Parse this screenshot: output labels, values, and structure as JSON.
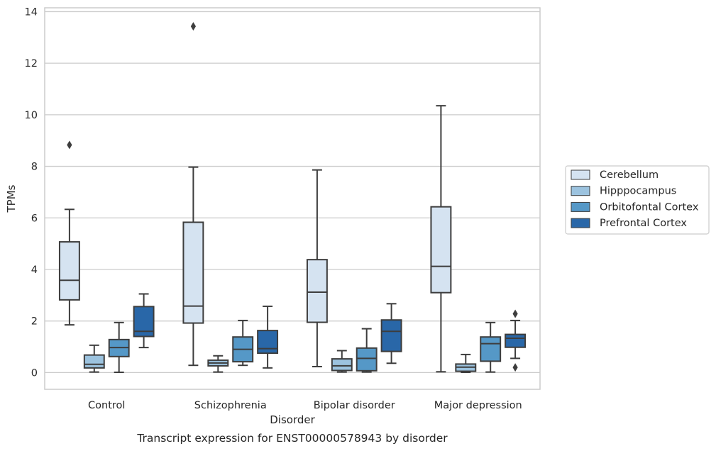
{
  "chart_data": {
    "type": "boxplot",
    "caption": "Transcript expression for ENST00000578943 by disorder",
    "xlabel": "Disorder",
    "ylabel": "TPMs",
    "ylim": [
      -0.65,
      14.15
    ],
    "yticks": [
      0,
      2,
      4,
      6,
      8,
      10,
      12,
      14
    ],
    "categories": [
      "Control",
      "Schizophrenia",
      "Bipolar disorder",
      "Major depression"
    ],
    "grid": "horizontal",
    "legend_position": "right",
    "series": [
      {
        "name": "Cerebellum",
        "color": "#d5e3f1",
        "boxes": [
          {
            "whisker_low": 1.85,
            "q1": 2.82,
            "median": 3.58,
            "q3": 5.07,
            "whisker_high": 6.33,
            "outliers": [
              8.83
            ]
          },
          {
            "whisker_low": 0.28,
            "q1": 1.92,
            "median": 2.58,
            "q3": 5.83,
            "whisker_high": 7.97,
            "outliers": [
              13.43
            ]
          },
          {
            "whisker_low": 0.23,
            "q1": 1.95,
            "median": 3.12,
            "q3": 4.38,
            "whisker_high": 7.86,
            "outliers": []
          },
          {
            "whisker_low": 0.03,
            "q1": 3.1,
            "median": 4.12,
            "q3": 6.43,
            "whisker_high": 10.35,
            "outliers": []
          }
        ]
      },
      {
        "name": "Hipppocampus",
        "color": "#9cc3df",
        "boxes": [
          {
            "whisker_low": 0.02,
            "q1": 0.18,
            "median": 0.32,
            "q3": 0.68,
            "whisker_high": 1.06,
            "outliers": []
          },
          {
            "whisker_low": 0.02,
            "q1": 0.26,
            "median": 0.37,
            "q3": 0.48,
            "whisker_high": 0.65,
            "outliers": []
          },
          {
            "whisker_low": 0.02,
            "q1": 0.08,
            "median": 0.26,
            "q3": 0.53,
            "whisker_high": 0.85,
            "outliers": []
          },
          {
            "whisker_low": 0.01,
            "q1": 0.05,
            "median": 0.21,
            "q3": 0.33,
            "whisker_high": 0.7,
            "outliers": []
          }
        ]
      },
      {
        "name": "Orbitofontal Cortex",
        "color": "#5598c7",
        "boxes": [
          {
            "whisker_low": 0.01,
            "q1": 0.62,
            "median": 0.97,
            "q3": 1.28,
            "whisker_high": 1.94,
            "outliers": []
          },
          {
            "whisker_low": 0.28,
            "q1": 0.42,
            "median": 0.9,
            "q3": 1.38,
            "whisker_high": 2.02,
            "outliers": []
          },
          {
            "whisker_low": 0.02,
            "q1": 0.07,
            "median": 0.55,
            "q3": 0.95,
            "whisker_high": 1.7,
            "outliers": []
          },
          {
            "whisker_low": 0.02,
            "q1": 0.44,
            "median": 1.12,
            "q3": 1.38,
            "whisker_high": 1.94,
            "outliers": []
          }
        ]
      },
      {
        "name": "Prefrontal Cortex",
        "color": "#2967a8",
        "boxes": [
          {
            "whisker_low": 0.97,
            "q1": 1.4,
            "median": 1.6,
            "q3": 2.56,
            "whisker_high": 3.05,
            "outliers": []
          },
          {
            "whisker_low": 0.18,
            "q1": 0.75,
            "median": 0.93,
            "q3": 1.63,
            "whisker_high": 2.57,
            "outliers": []
          },
          {
            "whisker_low": 0.36,
            "q1": 0.82,
            "median": 1.6,
            "q3": 2.04,
            "whisker_high": 2.67,
            "outliers": []
          },
          {
            "whisker_low": 0.55,
            "q1": 0.98,
            "median": 1.33,
            "q3": 1.48,
            "whisker_high": 2.02,
            "outliers": [
              2.28,
              0.2
            ]
          }
        ]
      }
    ]
  }
}
